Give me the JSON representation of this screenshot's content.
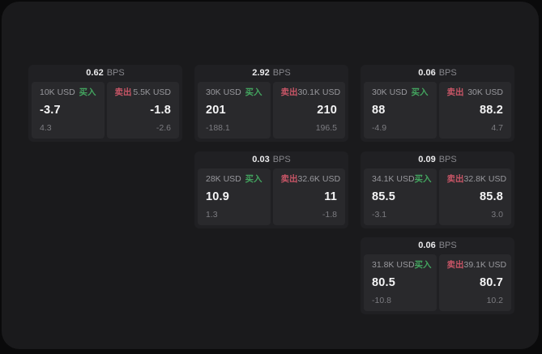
{
  "colors": {
    "buy_green": "#43a45f",
    "sell_red": "#c75566",
    "outer_bg": "#0a0a0b",
    "surface_bg": "#1a1a1c",
    "card_bg": "#202023",
    "tile_bg": "#29292c",
    "value_white": "#f5f5f6",
    "muted_gray": "#98989d"
  },
  "labels": {
    "bps": "BPS",
    "buy": "买入",
    "sell": "卖出"
  },
  "cards": [
    {
      "bps": "0.62",
      "buy": {
        "amount": "10K USD",
        "price": "-3.7",
        "delta": "4.3"
      },
      "sell": {
        "amount": "5.5K USD",
        "price": "-1.8",
        "delta": "-2.6"
      }
    },
    {
      "bps": "2.92",
      "buy": {
        "amount": "30K USD",
        "price": "201",
        "delta": "-188.1"
      },
      "sell": {
        "amount": "30.1K USD",
        "price": "210",
        "delta": "196.5"
      }
    },
    {
      "bps": "0.06",
      "buy": {
        "amount": "30K USD",
        "price": "88",
        "delta": "-4.9"
      },
      "sell": {
        "amount": "30K USD",
        "price": "88.2",
        "delta": "4.7"
      }
    },
    {
      "bps": "0.03",
      "buy": {
        "amount": "28K USD",
        "price": "10.9",
        "delta": "1.3"
      },
      "sell": {
        "amount": "32.6K USD",
        "price": "11",
        "delta": "-1.8"
      }
    },
    {
      "bps": "0.09",
      "buy": {
        "amount": "34.1K USD",
        "price": "85.5",
        "delta": "-3.1"
      },
      "sell": {
        "amount": "32.8K USD",
        "price": "85.8",
        "delta": "3.0"
      }
    },
    {
      "bps": "0.06",
      "buy": {
        "amount": "31.8K USD",
        "price": "80.5",
        "delta": "-10.8"
      },
      "sell": {
        "amount": "39.1K USD",
        "price": "80.7",
        "delta": "10.2"
      }
    }
  ]
}
